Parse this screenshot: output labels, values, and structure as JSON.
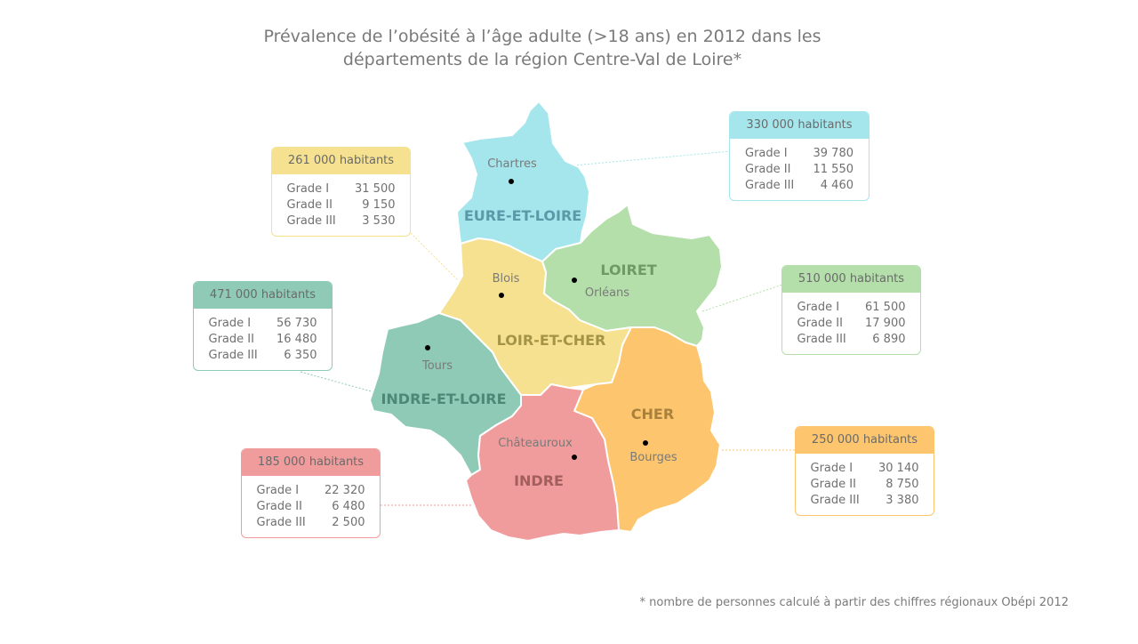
{
  "title": {
    "line1": "Prévalence de l’obésité à l’âge adulte (>18 ans) en 2012 dans les",
    "line2": "départements de la région Centre-Val de Loire*"
  },
  "footnote": "* nombre de personnes calculé à partir des chiffres régionaux Obépi 2012",
  "departments": {
    "eure_et_loire": {
      "name": "EURE-ET-LOIRE",
      "city": "Chartres",
      "color": "#a4e6ec",
      "label_color": "#5a9aa8",
      "population": "330 000 habitants",
      "grades": [
        {
          "label": "Grade I",
          "value": "39 780"
        },
        {
          "label": "Grade II",
          "value": "11 550"
        },
        {
          "label": "Grade III",
          "value": "4 460"
        }
      ]
    },
    "loiret": {
      "name": "LOIRET",
      "city": "Orléans",
      "color": "#b4dfaa",
      "label_color": "#6e9a66",
      "population": "510 000 habitants",
      "grades": [
        {
          "label": "Grade I",
          "value": "61 500"
        },
        {
          "label": "Grade II",
          "value": "17 900"
        },
        {
          "label": "Grade III",
          "value": "6 890"
        }
      ]
    },
    "loir_et_cher": {
      "name": "LOIR-ET-CHER",
      "city": "Blois",
      "color": "#f5e190",
      "label_color": "#a59446",
      "population": "261 000 habitants",
      "grades": [
        {
          "label": "Grade I",
          "value": "31 500"
        },
        {
          "label": "Grade II",
          "value": "9 150"
        },
        {
          "label": "Grade III",
          "value": "3 530"
        }
      ]
    },
    "indre_et_loire": {
      "name": "INDRE-ET-LOIRE",
      "city": "Tours",
      "color": "#8fcab6",
      "label_color": "#4f8777",
      "population": "471 000 habitants",
      "grades": [
        {
          "label": "Grade I",
          "value": "56 730"
        },
        {
          "label": "Grade II",
          "value": "16 480"
        },
        {
          "label": "Grade III",
          "value": "6 350"
        }
      ]
    },
    "cher": {
      "name": "CHER",
      "city": "Bourges",
      "color": "#fcc56e",
      "label_color": "#a8813d",
      "population": "250 000 habitants",
      "grades": [
        {
          "label": "Grade I",
          "value": "30 140"
        },
        {
          "label": "Grade II",
          "value": "8 750"
        },
        {
          "label": "Grade III",
          "value": "3 380"
        }
      ]
    },
    "indre": {
      "name": "INDRE",
      "city": "Châteauroux",
      "color": "#f09c9c",
      "label_color": "#a35e5e",
      "population": "185 000 habitants",
      "grades": [
        {
          "label": "Grade I",
          "value": "22 320"
        },
        {
          "label": "Grade II",
          "value": "6 480"
        },
        {
          "label": "Grade III",
          "value": "2 500"
        }
      ]
    }
  }
}
